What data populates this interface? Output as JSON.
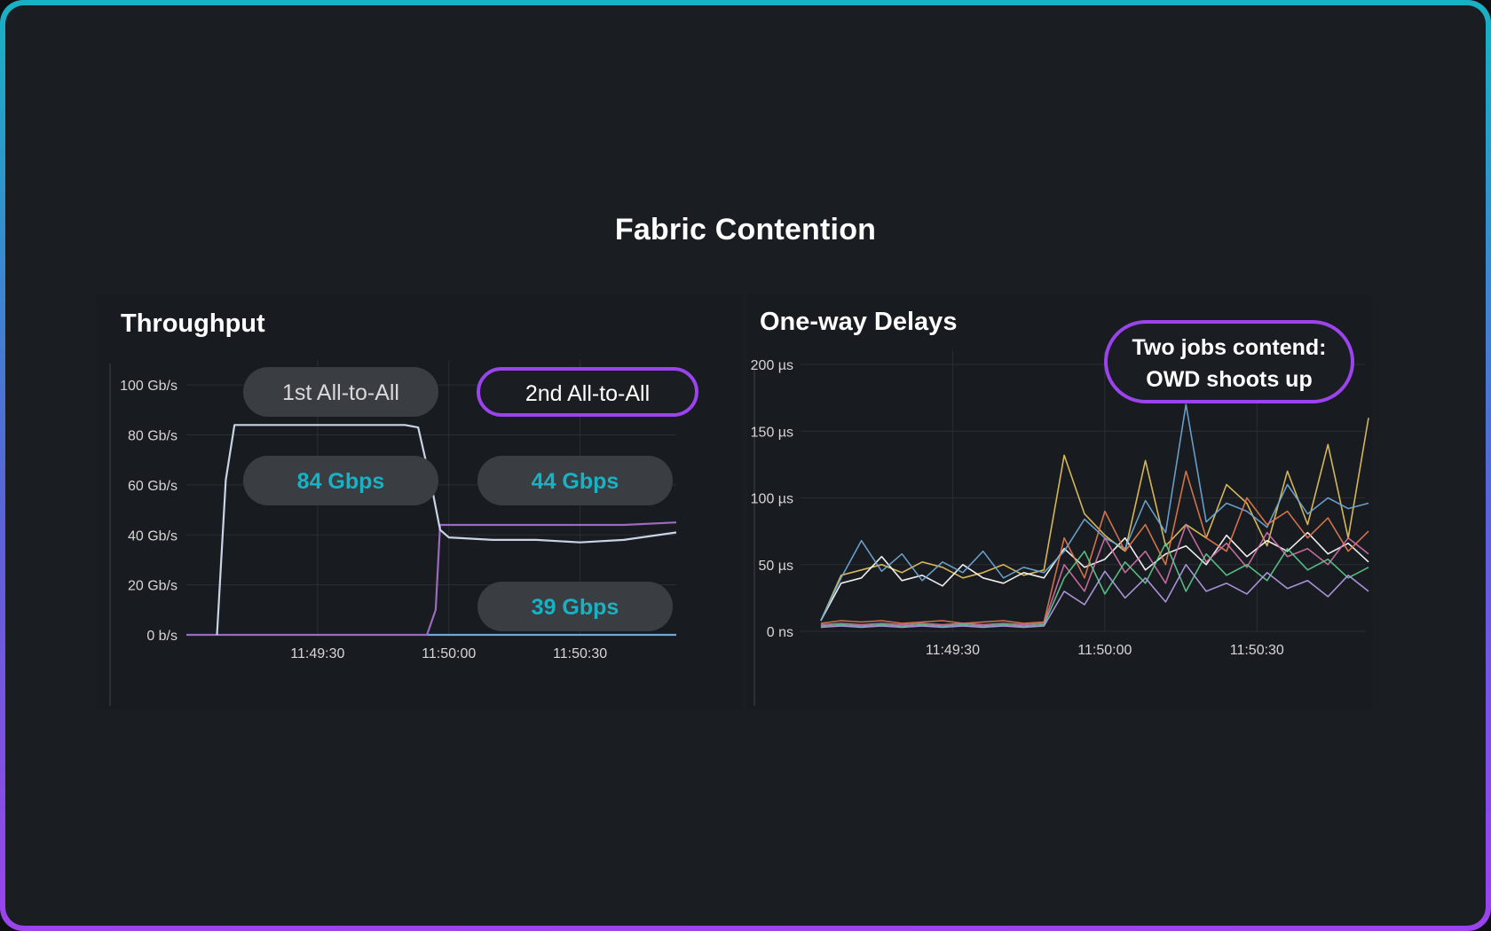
{
  "title": "Fabric Contention",
  "colors": {
    "background": "#1a1d21",
    "accent_cyan": "#17b2c4",
    "accent_purple": "#9b43ec",
    "pill_gray": "#3a3d42"
  },
  "chart_data": [
    {
      "type": "line",
      "title": "Throughput",
      "xlabel": "",
      "ylabel": "",
      "x_ticks": [
        "11:49:30",
        "11:50:00",
        "11:50:30"
      ],
      "y_ticks": [
        "0 b/s",
        "20 Gb/s",
        "40 Gb/s",
        "60 Gb/s",
        "80 Gb/s",
        "100 Gb/s"
      ],
      "ylim": [
        0,
        110
      ],
      "xlim": [
        "11:49:00",
        "11:50:52"
      ],
      "grid": true,
      "annotations": {
        "first": "1st All-to-All",
        "second": "2nd All-to-All",
        "first_rate": "84 Gbps",
        "second_rate_a": "44 Gbps",
        "second_rate_b": "39 Gbps"
      },
      "series": [
        {
          "color": "#c9d4e6",
          "x": [
            "11:49:07",
            "11:49:09",
            "11:49:11",
            "11:49:13",
            "11:49:20",
            "11:49:30",
            "11:49:40",
            "11:49:50",
            "11:49:53",
            "11:49:56",
            "11:49:58",
            "11:50:00",
            "11:50:10",
            "11:50:20",
            "11:50:30",
            "11:50:40",
            "11:50:52"
          ],
          "values": [
            0,
            62,
            84,
            84,
            84,
            84,
            84,
            84,
            83,
            60,
            42,
            39,
            38,
            38,
            37,
            38,
            41
          ]
        },
        {
          "color": "#9b6bc0",
          "x": [
            "11:49:00",
            "11:49:55",
            "11:49:57",
            "11:49:58",
            "11:50:00",
            "11:50:10",
            "11:50:20",
            "11:50:30",
            "11:50:40",
            "11:50:52"
          ],
          "values": [
            0,
            0,
            10,
            44,
            44,
            44,
            44,
            44,
            44,
            45
          ]
        },
        {
          "color": "#6fa8d6",
          "x": [
            "11:49:55",
            "11:50:52"
          ],
          "values": [
            0,
            0
          ]
        }
      ]
    },
    {
      "type": "line",
      "title": "One-way Delays",
      "xlabel": "",
      "ylabel": "",
      "x_ticks": [
        "11:49:30",
        "11:50:00",
        "11:50:30"
      ],
      "y_ticks": [
        "0 ns",
        "50 µs",
        "100 µs",
        "150 µs",
        "200 µs"
      ],
      "ylim": [
        0,
        210
      ],
      "xlim": [
        "11:49:00",
        "11:50:52"
      ],
      "grid": true,
      "annotation": "Two jobs contend:\nOWD shoots up",
      "series": [
        {
          "color": "#e6c35c",
          "x": [
            4,
            8,
            12,
            16,
            20,
            24,
            28,
            32,
            36,
            40,
            44,
            48,
            52,
            56,
            60,
            64,
            68,
            72,
            76,
            80,
            84,
            88,
            92,
            96,
            100,
            104,
            108,
            112
          ],
          "values": [
            8,
            42,
            46,
            50,
            44,
            52,
            48,
            40,
            44,
            50,
            42,
            46,
            132,
            88,
            72,
            60,
            128,
            64,
            80,
            70,
            110,
            96,
            64,
            120,
            80,
            140,
            70,
            160
          ]
        },
        {
          "color": "#ffffff",
          "x": [
            4,
            8,
            12,
            16,
            20,
            24,
            28,
            32,
            36,
            40,
            44,
            48,
            52,
            56,
            60,
            64,
            68,
            72,
            76,
            80,
            84,
            88,
            92,
            96,
            100,
            104,
            108,
            112
          ],
          "values": [
            8,
            36,
            40,
            56,
            38,
            42,
            34,
            50,
            40,
            36,
            44,
            40,
            62,
            48,
            54,
            70,
            46,
            58,
            64,
            50,
            72,
            56,
            68,
            60,
            74,
            58,
            66,
            52
          ]
        },
        {
          "color": "#6fa8d6",
          "x": [
            4,
            8,
            12,
            16,
            20,
            24,
            28,
            32,
            36,
            40,
            44,
            48,
            52,
            56,
            60,
            64,
            68,
            72,
            76,
            80,
            84,
            88,
            92,
            96,
            100,
            104,
            108,
            112
          ],
          "values": [
            8,
            40,
            68,
            45,
            58,
            38,
            52,
            44,
            60,
            40,
            48,
            44,
            60,
            84,
            70,
            62,
            98,
            74,
            170,
            82,
            96,
            90,
            78,
            110,
            88,
            100,
            92,
            96
          ]
        },
        {
          "color": "#e07a4f",
          "x": [
            4,
            8,
            12,
            16,
            20,
            24,
            28,
            32,
            36,
            40,
            44,
            48,
            52,
            56,
            60,
            64,
            68,
            72,
            76,
            80,
            84,
            88,
            92,
            96,
            100,
            104,
            108,
            112
          ],
          "values": [
            6,
            8,
            7,
            8,
            6,
            7,
            8,
            6,
            7,
            8,
            6,
            7,
            70,
            40,
            90,
            60,
            80,
            50,
            120,
            70,
            60,
            100,
            80,
            90,
            70,
            85,
            60,
            75
          ]
        },
        {
          "color": "#d070a8",
          "x": [
            4,
            8,
            12,
            16,
            20,
            24,
            28,
            32,
            36,
            40,
            44,
            48,
            52,
            56,
            60,
            64,
            68,
            72,
            76,
            80,
            84,
            88,
            92,
            96,
            100,
            104,
            108,
            112
          ],
          "values": [
            5,
            6,
            5,
            6,
            5,
            6,
            5,
            6,
            5,
            6,
            5,
            6,
            50,
            30,
            70,
            44,
            60,
            36,
            80,
            52,
            66,
            48,
            74,
            56,
            62,
            50,
            70,
            58
          ]
        },
        {
          "color": "#5cc98a",
          "x": [
            4,
            8,
            12,
            16,
            20,
            24,
            28,
            32,
            36,
            40,
            44,
            48,
            52,
            56,
            60,
            64,
            68,
            72,
            76,
            80,
            84,
            88,
            92,
            96,
            100,
            104,
            108,
            112
          ],
          "values": [
            4,
            5,
            4,
            5,
            4,
            5,
            4,
            5,
            4,
            5,
            4,
            5,
            40,
            60,
            28,
            52,
            36,
            66,
            30,
            58,
            42,
            50,
            38,
            62,
            46,
            54,
            40,
            48
          ]
        },
        {
          "color": "#b59be8",
          "x": [
            4,
            8,
            12,
            16,
            20,
            24,
            28,
            32,
            36,
            40,
            44,
            48,
            52,
            56,
            60,
            64,
            68,
            72,
            76,
            80,
            84,
            88,
            92,
            96,
            100,
            104,
            108,
            112
          ],
          "values": [
            3,
            4,
            3,
            4,
            3,
            4,
            3,
            4,
            3,
            4,
            3,
            4,
            30,
            20,
            45,
            25,
            40,
            22,
            50,
            30,
            36,
            28,
            44,
            32,
            38,
            26,
            42,
            30
          ]
        }
      ]
    }
  ]
}
